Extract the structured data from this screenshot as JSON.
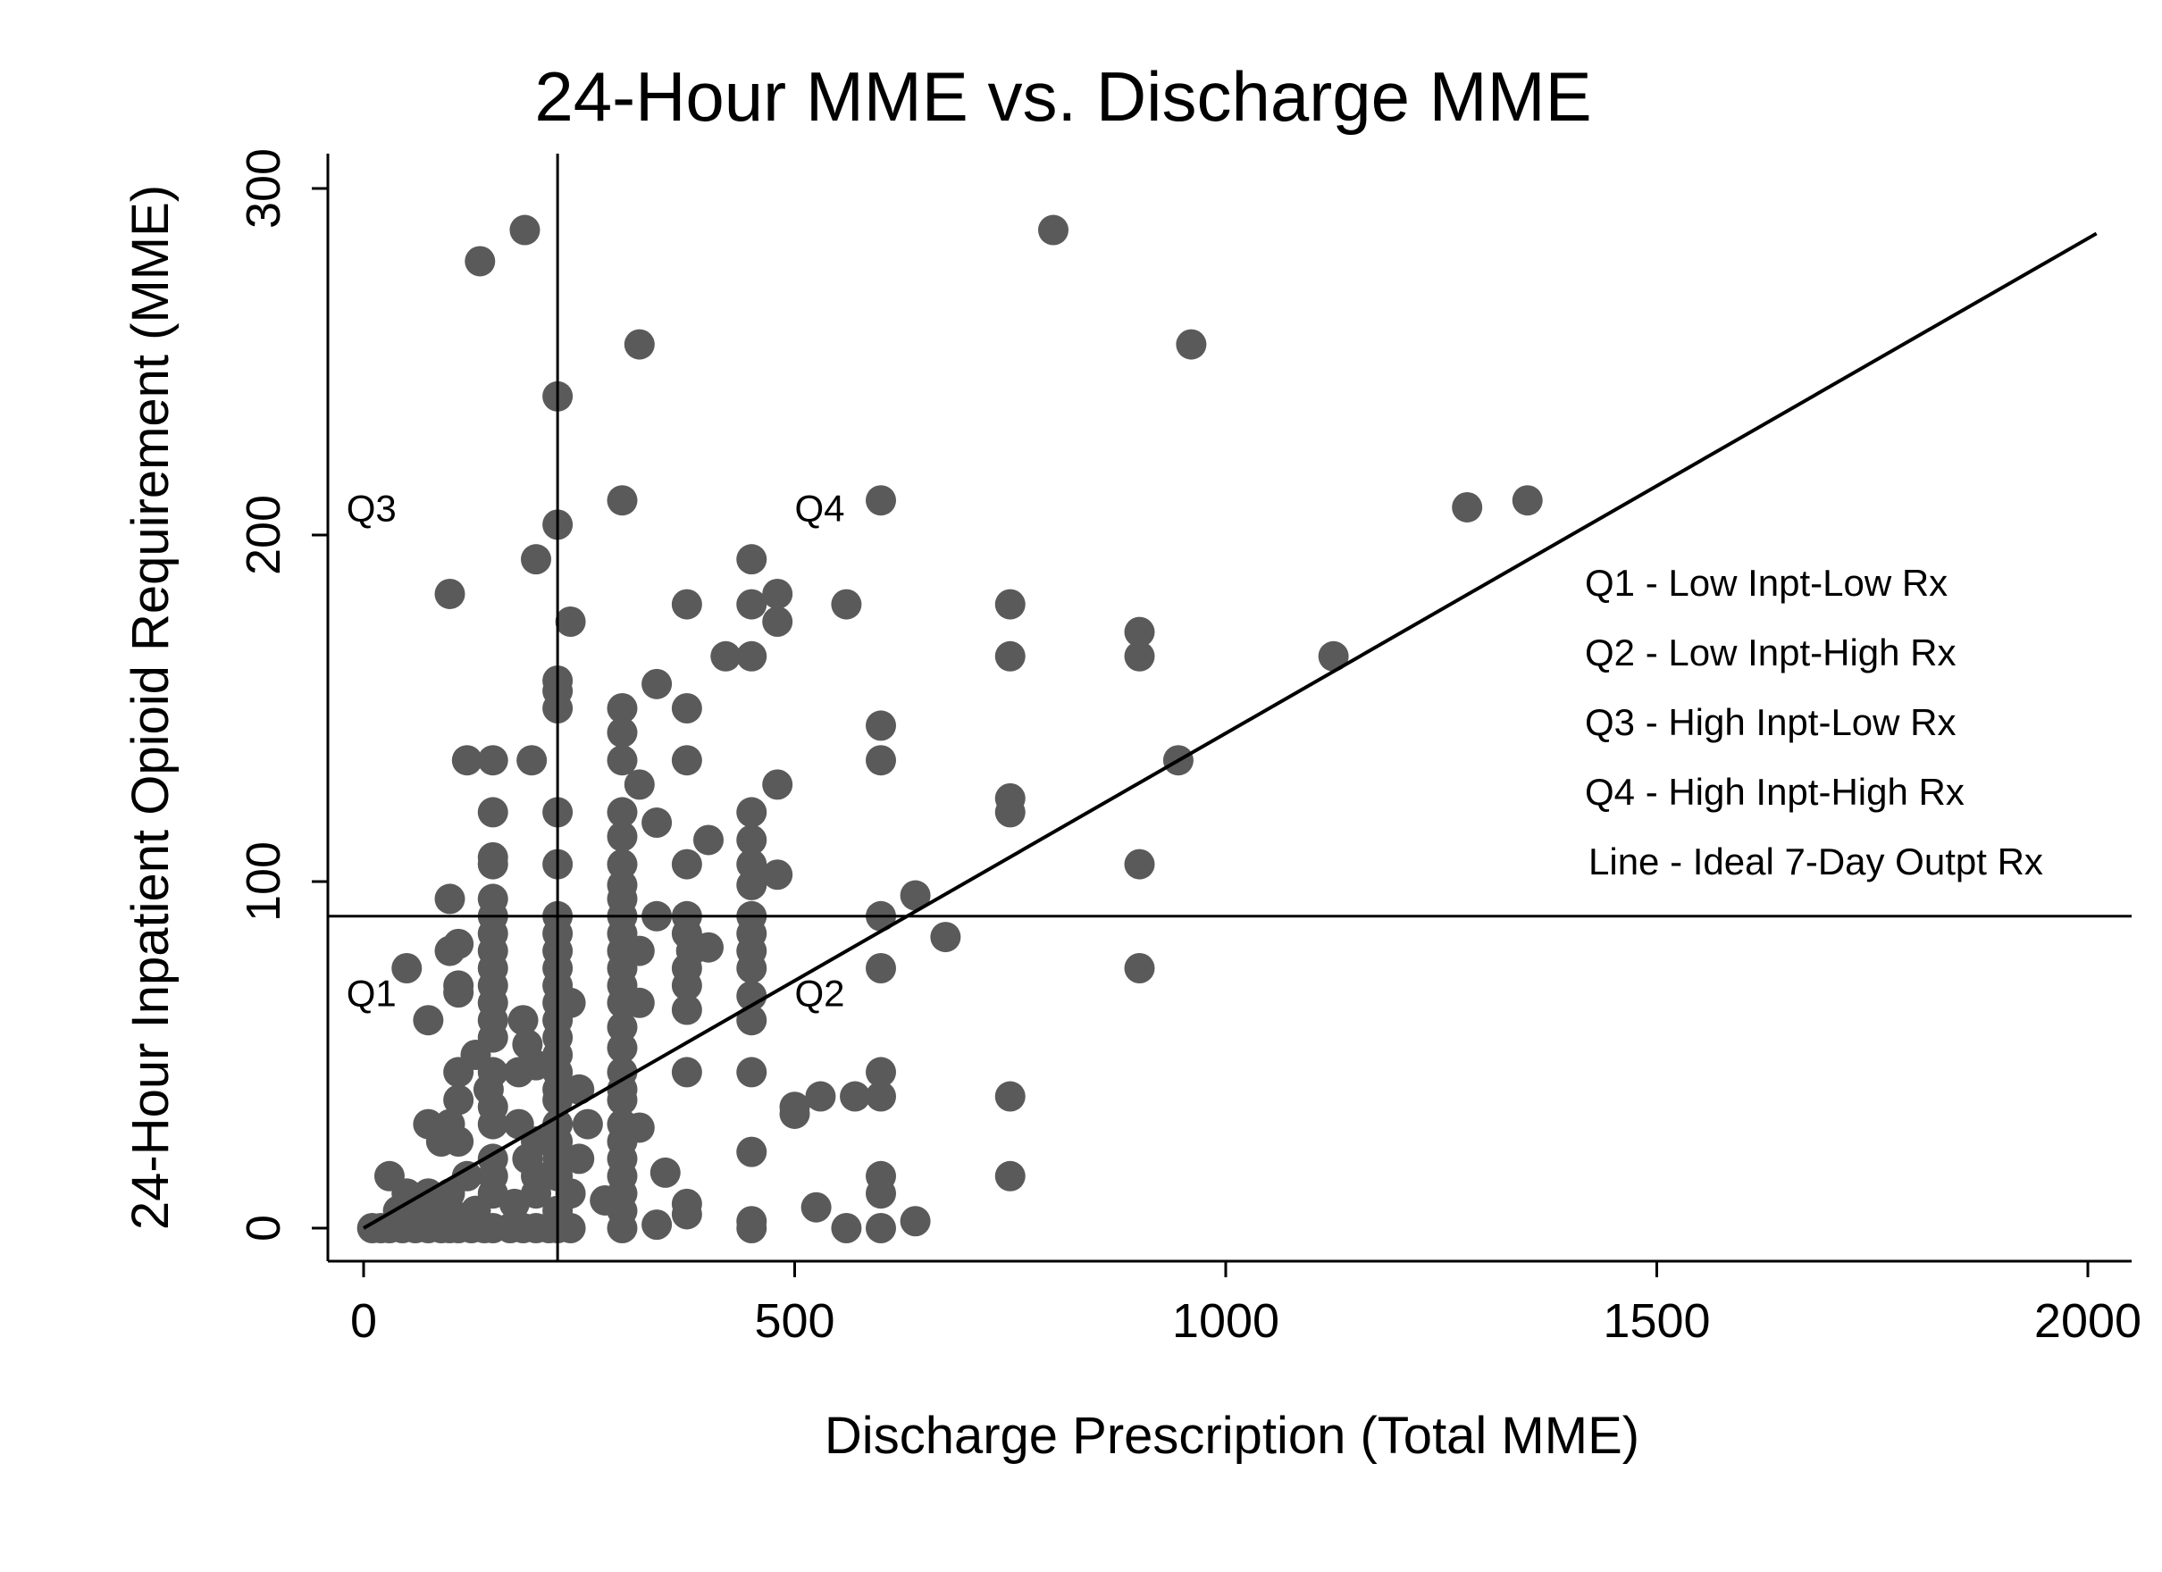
{
  "chart_data": {
    "type": "scatter",
    "title": "24-Hour MME vs. Discharge MME",
    "xlabel": "Discharge Prescription (Total MME)",
    "ylabel": "24-Hour Inpatient Opioid Requirement (MME)",
    "xlim": [
      -40,
      2050
    ],
    "ylim": [
      -10,
      310
    ],
    "xticks": [
      0,
      500,
      1000,
      1500,
      2000
    ],
    "yticks": [
      0,
      100,
      200,
      300
    ],
    "grid": false,
    "point_color": "#5a5a5a",
    "reference_lines": {
      "vertical_x": 225,
      "horizontal_y": 90,
      "ideal_line": {
        "x": [
          0,
          2010
        ],
        "y": [
          0,
          287
        ]
      }
    },
    "quadrant_labels": [
      {
        "text": "Q3",
        "x": -20,
        "y": 204
      },
      {
        "text": "Q4",
        "x": 500,
        "y": 204
      },
      {
        "text": "Q1",
        "x": -20,
        "y": 64
      },
      {
        "text": "Q2",
        "x": 500,
        "y": 64
      }
    ],
    "legend": {
      "placement": "right-middle",
      "entries": [
        "Q1 - Low Inpt-Low Rx",
        "Q2 - Low Inpt-High Rx",
        "Q3 - High Inpt-Low Rx",
        "Q4 - High Inpt-High Rx",
        "Line - Ideal 7-Day Outpt Rx"
      ]
    },
    "points": [
      [
        135,
        279
      ],
      [
        187,
        288
      ],
      [
        800,
        288
      ],
      [
        320,
        255
      ],
      [
        960,
        255
      ],
      [
        225,
        240
      ],
      [
        225,
        203
      ],
      [
        300,
        210
      ],
      [
        600,
        210
      ],
      [
        1280,
        208
      ],
      [
        1350,
        210
      ],
      [
        200,
        193
      ],
      [
        100,
        183
      ],
      [
        450,
        193
      ],
      [
        480,
        183
      ],
      [
        450,
        180
      ],
      [
        375,
        180
      ],
      [
        560,
        180
      ],
      [
        750,
        180
      ],
      [
        480,
        175
      ],
      [
        240,
        175
      ],
      [
        420,
        165
      ],
      [
        450,
        165
      ],
      [
        750,
        165
      ],
      [
        900,
        165
      ],
      [
        900,
        172
      ],
      [
        1125,
        165
      ],
      [
        225,
        158
      ],
      [
        225,
        155
      ],
      [
        225,
        150
      ],
      [
        300,
        150
      ],
      [
        340,
        157
      ],
      [
        375,
        150
      ],
      [
        300,
        143
      ],
      [
        600,
        145
      ],
      [
        120,
        135
      ],
      [
        150,
        135
      ],
      [
        195,
        135
      ],
      [
        300,
        135
      ],
      [
        375,
        135
      ],
      [
        600,
        135
      ],
      [
        945,
        135
      ],
      [
        320,
        128
      ],
      [
        480,
        128
      ],
      [
        750,
        124
      ],
      [
        750,
        120
      ],
      [
        150,
        120
      ],
      [
        225,
        120
      ],
      [
        300,
        120
      ],
      [
        340,
        117
      ],
      [
        450,
        120
      ],
      [
        300,
        113
      ],
      [
        400,
        112
      ],
      [
        450,
        112
      ],
      [
        150,
        107
      ],
      [
        150,
        105
      ],
      [
        225,
        105
      ],
      [
        300,
        105
      ],
      [
        375,
        105
      ],
      [
        450,
        105
      ],
      [
        300,
        99
      ],
      [
        450,
        99
      ],
      [
        480,
        102
      ],
      [
        900,
        105
      ],
      [
        100,
        95
      ],
      [
        150,
        95
      ],
      [
        300,
        95
      ],
      [
        640,
        96
      ],
      [
        150,
        90
      ],
      [
        225,
        90
      ],
      [
        300,
        90
      ],
      [
        340,
        90
      ],
      [
        375,
        90
      ],
      [
        450,
        90
      ],
      [
        600,
        90
      ],
      [
        150,
        85
      ],
      [
        225,
        85
      ],
      [
        300,
        85
      ],
      [
        375,
        85
      ],
      [
        450,
        85
      ],
      [
        675,
        84
      ],
      [
        110,
        82
      ],
      [
        100,
        80
      ],
      [
        150,
        80
      ],
      [
        225,
        80
      ],
      [
        300,
        80
      ],
      [
        320,
        80
      ],
      [
        380,
        80
      ],
      [
        400,
        81
      ],
      [
        450,
        80
      ],
      [
        50,
        75
      ],
      [
        150,
        75
      ],
      [
        225,
        75
      ],
      [
        300,
        75
      ],
      [
        375,
        75
      ],
      [
        450,
        75
      ],
      [
        600,
        75
      ],
      [
        900,
        75
      ],
      [
        110,
        70
      ],
      [
        110,
        68
      ],
      [
        150,
        70
      ],
      [
        225,
        70
      ],
      [
        300,
        70
      ],
      [
        375,
        70
      ],
      [
        450,
        67
      ],
      [
        150,
        65
      ],
      [
        225,
        65
      ],
      [
        240,
        65
      ],
      [
        300,
        65
      ],
      [
        320,
        65
      ],
      [
        375,
        63
      ],
      [
        75,
        60
      ],
      [
        150,
        60
      ],
      [
        185,
        60
      ],
      [
        225,
        60
      ],
      [
        450,
        60
      ],
      [
        300,
        58
      ],
      [
        150,
        55
      ],
      [
        190,
        53
      ],
      [
        225,
        55
      ],
      [
        225,
        50
      ],
      [
        130,
        50
      ],
      [
        300,
        52
      ],
      [
        150,
        45
      ],
      [
        110,
        45
      ],
      [
        180,
        45
      ],
      [
        200,
        47
      ],
      [
        225,
        45
      ],
      [
        300,
        45
      ],
      [
        375,
        45
      ],
      [
        450,
        45
      ],
      [
        600,
        45
      ],
      [
        145,
        40
      ],
      [
        225,
        40
      ],
      [
        250,
        40
      ],
      [
        300,
        40
      ],
      [
        110,
        37
      ],
      [
        150,
        35
      ],
      [
        225,
        37
      ],
      [
        300,
        37
      ],
      [
        530,
        38
      ],
      [
        570,
        38
      ],
      [
        600,
        38
      ],
      [
        750,
        38
      ],
      [
        500,
        35
      ],
      [
        500,
        33
      ],
      [
        75,
        30
      ],
      [
        100,
        30
      ],
      [
        150,
        30
      ],
      [
        180,
        30
      ],
      [
        225,
        30
      ],
      [
        260,
        30
      ],
      [
        300,
        30
      ],
      [
        320,
        29
      ],
      [
        90,
        25
      ],
      [
        110,
        25
      ],
      [
        200,
        25
      ],
      [
        225,
        25
      ],
      [
        300,
        25
      ],
      [
        150,
        20
      ],
      [
        190,
        20
      ],
      [
        225,
        20
      ],
      [
        250,
        20
      ],
      [
        300,
        20
      ],
      [
        450,
        22
      ],
      [
        30,
        15
      ],
      [
        120,
        15
      ],
      [
        150,
        15
      ],
      [
        200,
        15
      ],
      [
        225,
        15
      ],
      [
        300,
        15
      ],
      [
        350,
        16
      ],
      [
        600,
        15
      ],
      [
        750,
        15
      ],
      [
        50,
        10
      ],
      [
        75,
        10
      ],
      [
        100,
        10
      ],
      [
        150,
        10
      ],
      [
        200,
        10
      ],
      [
        240,
        10
      ],
      [
        300,
        10
      ],
      [
        600,
        10
      ],
      [
        40,
        5
      ],
      [
        70,
        5
      ],
      [
        100,
        5
      ],
      [
        130,
        5
      ],
      [
        175,
        7
      ],
      [
        225,
        5
      ],
      [
        280,
        8
      ],
      [
        300,
        5
      ],
      [
        375,
        7
      ],
      [
        375,
        4
      ],
      [
        525,
        6
      ],
      [
        10,
        0
      ],
      [
        20,
        0
      ],
      [
        30,
        0
      ],
      [
        45,
        0
      ],
      [
        60,
        0
      ],
      [
        75,
        0
      ],
      [
        90,
        0
      ],
      [
        100,
        0
      ],
      [
        110,
        0
      ],
      [
        125,
        0
      ],
      [
        140,
        0
      ],
      [
        150,
        0
      ],
      [
        170,
        0
      ],
      [
        185,
        0
      ],
      [
        200,
        0
      ],
      [
        215,
        0
      ],
      [
        225,
        0
      ],
      [
        240,
        0
      ],
      [
        300,
        0
      ],
      [
        340,
        1
      ],
      [
        450,
        0
      ],
      [
        450,
        2
      ],
      [
        560,
        0
      ],
      [
        600,
        0
      ],
      [
        640,
        2
      ]
    ]
  }
}
